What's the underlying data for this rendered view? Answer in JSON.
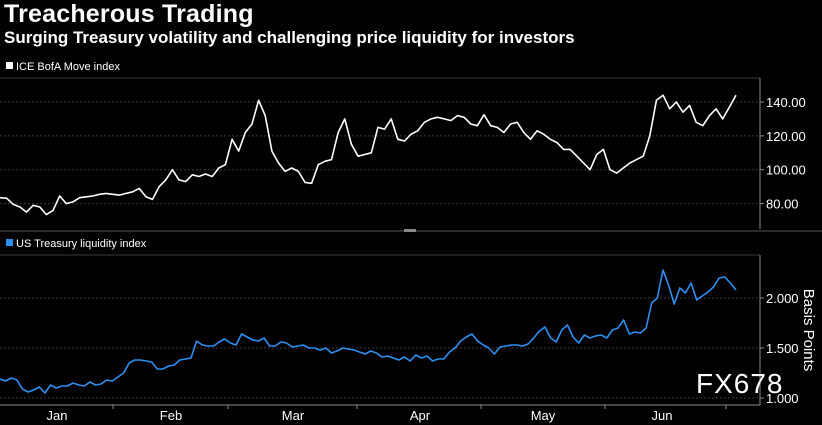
{
  "header": {
    "title": "Treacherous Trading",
    "subtitle": "Surging Treasury volatility and challenging price liquidity for investors"
  },
  "watermark": "FX678",
  "chart_data": [
    {
      "type": "line",
      "name": "move",
      "legend": "ICE BofA Move index",
      "color": "#ffffff",
      "ylim": [
        65,
        153
      ],
      "yticks": [
        80,
        100,
        120,
        140
      ],
      "ytick_labels": [
        "80.00",
        "100.00",
        "120.00",
        "140.00"
      ],
      "ylabel": "",
      "months": [
        "Jan",
        "Feb",
        "Mar",
        "Apr",
        "May",
        "Jun"
      ],
      "values": [
        83.5,
        83.2,
        79.5,
        78.0,
        75.0,
        79.0,
        78.0,
        73.5,
        76.0,
        84.5,
        80.0,
        81.0,
        83.5,
        84.0,
        84.5,
        85.5,
        86.0,
        85.5,
        85.0,
        86.0,
        87.0,
        89.0,
        84.0,
        82.5,
        90.0,
        94.0,
        100.0,
        94.0,
        93.0,
        97.0,
        96.0,
        97.5,
        96.0,
        101.0,
        103.0,
        118.0,
        111.0,
        122.0,
        127.0,
        141.0,
        132.0,
        111.0,
        104.0,
        99.0,
        101.0,
        99.0,
        92.5,
        92.0,
        103.0,
        105.0,
        106.0,
        122.0,
        130.0,
        115.0,
        108.0,
        109.0,
        110.0,
        125.0,
        124.0,
        130.0,
        118.0,
        117.0,
        121.0,
        123.0,
        128.0,
        130.0,
        131.0,
        130.0,
        129.0,
        132.0,
        131.0,
        127.0,
        126.0,
        132.5,
        126.0,
        125.0,
        122.0,
        127.0,
        128.0,
        122.0,
        118.0,
        123.0,
        121.0,
        118.0,
        116.0,
        112.0,
        112.0,
        108.0,
        104.0,
        100.0,
        109.0,
        112.0,
        100.0,
        98.0,
        101.0,
        104.0,
        106.0,
        108.0,
        120.0,
        141.0,
        144.0,
        136.0,
        140.0,
        134.0,
        138.0,
        128.0,
        126.0,
        132.0,
        136.0,
        130.0,
        137.0,
        144.0
      ]
    },
    {
      "type": "line",
      "name": "liquidity",
      "legend": "US Treasury liquidity index",
      "color": "#2d8ff0",
      "ylim": [
        0.95,
        2.4
      ],
      "yticks": [
        1.0,
        1.5,
        2.0
      ],
      "ytick_labels": [
        "1.000",
        "1.500",
        "2.000"
      ],
      "ylabel": "Basis Points",
      "months": [
        "Jan",
        "Feb",
        "Mar",
        "Apr",
        "May",
        "Jun"
      ],
      "values": [
        1.19,
        1.17,
        1.2,
        1.18,
        1.09,
        1.06,
        1.08,
        1.11,
        1.05,
        1.13,
        1.1,
        1.12,
        1.12,
        1.15,
        1.13,
        1.12,
        1.16,
        1.13,
        1.14,
        1.18,
        1.17,
        1.21,
        1.25,
        1.35,
        1.38,
        1.38,
        1.37,
        1.36,
        1.29,
        1.29,
        1.32,
        1.33,
        1.38,
        1.39,
        1.4,
        1.57,
        1.53,
        1.52,
        1.52,
        1.56,
        1.59,
        1.55,
        1.53,
        1.64,
        1.61,
        1.58,
        1.57,
        1.6,
        1.52,
        1.52,
        1.56,
        1.55,
        1.51,
        1.52,
        1.53,
        1.5,
        1.5,
        1.48,
        1.5,
        1.45,
        1.47,
        1.5,
        1.49,
        1.48,
        1.46,
        1.44,
        1.47,
        1.45,
        1.41,
        1.42,
        1.4,
        1.38,
        1.41,
        1.37,
        1.43,
        1.4,
        1.42,
        1.37,
        1.39,
        1.39,
        1.46,
        1.5,
        1.57,
        1.61,
        1.64,
        1.57,
        1.53,
        1.5,
        1.44,
        1.51,
        1.52,
        1.53,
        1.53,
        1.52,
        1.54,
        1.6,
        1.67,
        1.71,
        1.6,
        1.56,
        1.68,
        1.73,
        1.61,
        1.55,
        1.63,
        1.6,
        1.62,
        1.63,
        1.6,
        1.68,
        1.7,
        1.78,
        1.64,
        1.66,
        1.65,
        1.7,
        1.95,
        2.0,
        2.28,
        2.13,
        1.94,
        2.1,
        2.05,
        2.15,
        1.98,
        2.02,
        2.06,
        2.11,
        2.2,
        2.21,
        2.15,
        2.08
      ]
    }
  ]
}
